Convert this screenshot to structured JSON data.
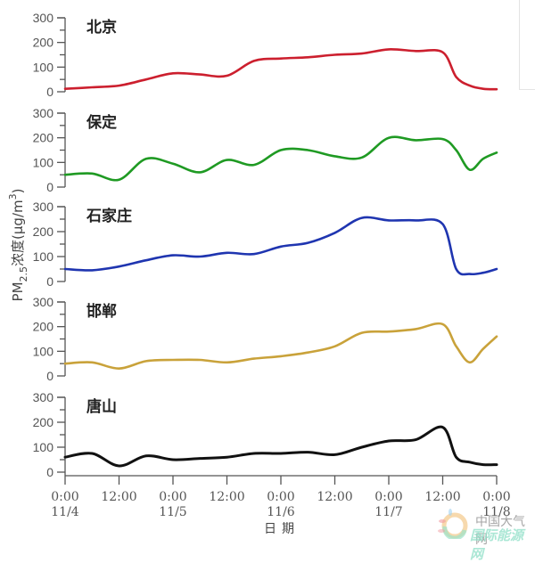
{
  "chart_data": {
    "type": "line",
    "layout": "5 vertically stacked panels sharing x-axis",
    "ylabel": "PM2.5浓度(μg/m³)",
    "xlabel": "日期",
    "ylim": [
      0,
      300
    ],
    "yticks": [
      0,
      100,
      200,
      300
    ],
    "x_hours_from_start": [
      0,
      6,
      12,
      18,
      24,
      30,
      36,
      42,
      48,
      54,
      60,
      66,
      72,
      78,
      84,
      87,
      90,
      93,
      96
    ],
    "xticks": [
      {
        "hour": 0,
        "time": "0:00",
        "date": "11/4"
      },
      {
        "hour": 12,
        "time": "12:00",
        "date": ""
      },
      {
        "hour": 24,
        "time": "0:00",
        "date": "11/5"
      },
      {
        "hour": 36,
        "time": "12:00",
        "date": ""
      },
      {
        "hour": 48,
        "time": "0:00",
        "date": "11/6"
      },
      {
        "hour": 60,
        "time": "12:00",
        "date": ""
      },
      {
        "hour": 72,
        "time": "0:00",
        "date": "11/7"
      },
      {
        "hour": 84,
        "time": "12:00",
        "date": ""
      },
      {
        "hour": 96,
        "time": "0:00",
        "date": "11/8"
      }
    ],
    "xrange": [
      "0:00 11/4",
      "0:00 11/8"
    ],
    "grid": false,
    "legend": "none (panel titles)",
    "series": [
      {
        "name": "北京",
        "color": "#cc1f2e",
        "values": [
          12,
          18,
          25,
          50,
          75,
          70,
          65,
          125,
          135,
          140,
          150,
          155,
          172,
          165,
          160,
          60,
          25,
          12,
          10
        ]
      },
      {
        "name": "保定",
        "color": "#1f9a23",
        "values": [
          50,
          55,
          30,
          115,
          95,
          60,
          110,
          90,
          150,
          150,
          125,
          120,
          200,
          190,
          195,
          150,
          70,
          115,
          140
        ]
      },
      {
        "name": "石家庄",
        "color": "#1f35b0",
        "values": [
          50,
          45,
          60,
          85,
          105,
          100,
          115,
          110,
          140,
          155,
          195,
          255,
          245,
          245,
          230,
          50,
          30,
          35,
          50
        ]
      },
      {
        "name": "邯郸",
        "color": "#c9a23a",
        "values": [
          50,
          55,
          30,
          60,
          65,
          65,
          55,
          70,
          80,
          95,
          120,
          175,
          180,
          190,
          210,
          120,
          55,
          110,
          160
        ]
      },
      {
        "name": "唐山",
        "color": "#111111",
        "values": [
          60,
          75,
          25,
          65,
          50,
          55,
          60,
          75,
          75,
          80,
          70,
          100,
          125,
          130,
          180,
          60,
          40,
          30,
          30
        ]
      }
    ]
  },
  "panels": [
    {
      "title": "北京"
    },
    {
      "title": "保定"
    },
    {
      "title": "石家庄"
    },
    {
      "title": "邯郸"
    },
    {
      "title": "唐山"
    }
  ],
  "yaxis": {
    "label_main": "PM",
    "label_sub": "2.5",
    "label_rest": "浓度(μg/m",
    "label_sup": "3",
    "label_end": ")"
  },
  "xaxis": {
    "label": "日期"
  },
  "watermark": {
    "line1": "中国大气网",
    "line2": "国际能源网"
  }
}
